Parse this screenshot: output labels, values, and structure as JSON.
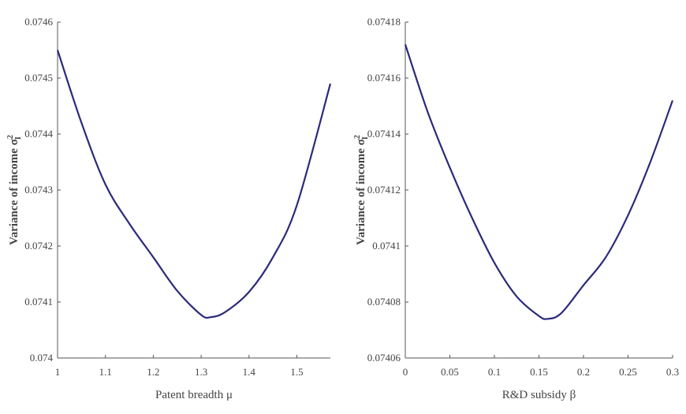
{
  "chart_data": [
    {
      "type": "line",
      "xlabel": "Patent breadth μ",
      "ylabel": "Variance of income σ",
      "ylabel_super": "2",
      "ylabel_sub": "I",
      "xlim": [
        1,
        1.57
      ],
      "ylim": [
        0.074,
        0.0746
      ],
      "xticks": [
        "1",
        "1.1",
        "1.2",
        "1.3",
        "1.4",
        "1.5"
      ],
      "xtick_values": [
        1,
        1.1,
        1.2,
        1.3,
        1.4,
        1.5
      ],
      "yticks": [
        "0.074",
        "0.0741",
        "0.0742",
        "0.0743",
        "0.0744",
        "0.0745",
        "0.0746"
      ],
      "ytick_values": [
        0.074,
        0.0741,
        0.0742,
        0.0743,
        0.0744,
        0.0745,
        0.0746
      ],
      "grid": false,
      "line_color": "#2b2a7a",
      "series": [
        {
          "x": [
            1,
            1.05,
            1.1,
            1.15,
            1.2,
            1.25,
            1.3,
            1.32,
            1.35,
            1.4,
            1.45,
            1.5,
            1.57
          ],
          "y": [
            0.07455,
            0.07442,
            0.07431,
            0.07424,
            0.07418,
            0.07412,
            0.074077,
            0.074073,
            0.074082,
            0.074118,
            0.07418,
            0.074273,
            0.07449
          ]
        }
      ]
    },
    {
      "type": "line",
      "xlabel": "R&D subsidy β",
      "ylabel": "Variance of income σ",
      "ylabel_super": "2",
      "ylabel_sub": "I",
      "xlim": [
        0,
        0.3
      ],
      "ylim": [
        0.07406,
        0.07418
      ],
      "xticks": [
        "0",
        "0.05",
        "0.1",
        "0.15",
        "0.2",
        "0.25",
        "0.3"
      ],
      "xtick_values": [
        0,
        0.05,
        0.1,
        0.15,
        0.2,
        0.25,
        0.3
      ],
      "yticks": [
        "0.07406",
        "0.07408",
        "0.0741",
        "0.07412",
        "0.07414",
        "0.07416",
        "0.07418"
      ],
      "ytick_values": [
        0.07406,
        0.07408,
        0.0741,
        0.07412,
        0.07414,
        0.07416,
        0.07418
      ],
      "grid": false,
      "line_color": "#2b2a7a",
      "series": [
        {
          "x": [
            0,
            0.025,
            0.05,
            0.075,
            0.1,
            0.125,
            0.15,
            0.16,
            0.175,
            0.2,
            0.225,
            0.25,
            0.275,
            0.3
          ],
          "y": [
            0.074172,
            0.074148,
            0.074128,
            0.07411,
            0.074094,
            0.074082,
            0.074075,
            0.074074,
            0.074076,
            0.074086,
            0.074096,
            0.074111,
            0.07413,
            0.074152
          ]
        }
      ]
    }
  ]
}
